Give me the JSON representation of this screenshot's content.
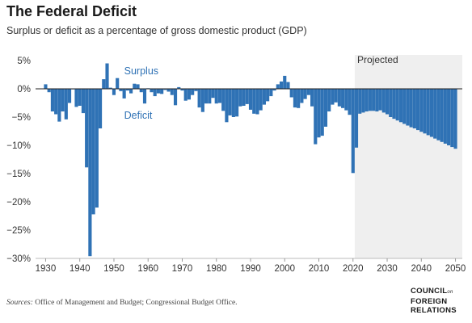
{
  "header": {
    "title": "The Federal Deficit",
    "subtitle": "Surplus or deficit as a percentage of gross domestic product (GDP)"
  },
  "footer": {
    "source_label": "Sources:",
    "source_text": "Office of Management and Budget; Congressional Budget Office.",
    "logo_line1": "COUNCIL",
    "logo_on": "on",
    "logo_line2": "FOREIGN",
    "logo_line3": "RELATIONS"
  },
  "colors": {
    "bar": "#2f72b5",
    "projected_shade": "#efefef",
    "label_text": "#2f72b5",
    "axis_text": "#333333",
    "zero_line": "#222222"
  },
  "chart_data": {
    "type": "bar",
    "title": "The Federal Deficit",
    "subtitle": "Surplus or deficit as a percentage of gross domestic product (GDP)",
    "xlabel": "",
    "ylabel": "",
    "xlim": [
      1928,
      2052
    ],
    "ylim": [
      -30,
      5
    ],
    "x_ticks": [
      1930,
      1940,
      1950,
      1960,
      1970,
      1980,
      1990,
      2000,
      2010,
      2020,
      2030,
      2040,
      2050
    ],
    "y_ticks": [
      5,
      0,
      -5,
      -10,
      -15,
      -20,
      -25,
      -30
    ],
    "y_tick_labels": [
      "5%",
      "0%",
      "−5%",
      "−10%",
      "−15%",
      "−20%",
      "−25%",
      "−30%"
    ],
    "grid": false,
    "annotations": {
      "surplus": "Surplus",
      "deficit": "Deficit",
      "projected": "Projected"
    },
    "projected_from": 2021,
    "x": [
      1930,
      1931,
      1932,
      1933,
      1934,
      1935,
      1936,
      1937,
      1938,
      1939,
      1940,
      1941,
      1942,
      1943,
      1944,
      1945,
      1946,
      1947,
      1948,
      1949,
      1950,
      1951,
      1952,
      1953,
      1954,
      1955,
      1956,
      1957,
      1958,
      1959,
      1960,
      1961,
      1962,
      1963,
      1964,
      1965,
      1966,
      1967,
      1968,
      1969,
      1970,
      1971,
      1972,
      1973,
      1974,
      1975,
      1976,
      1977,
      1978,
      1979,
      1980,
      1981,
      1982,
      1983,
      1984,
      1985,
      1986,
      1987,
      1988,
      1989,
      1990,
      1991,
      1992,
      1993,
      1994,
      1995,
      1996,
      1997,
      1998,
      1999,
      2000,
      2001,
      2002,
      2003,
      2004,
      2005,
      2006,
      2007,
      2008,
      2009,
      2010,
      2011,
      2012,
      2013,
      2014,
      2015,
      2016,
      2017,
      2018,
      2019,
      2020,
      2021,
      2022,
      2023,
      2024,
      2025,
      2026,
      2027,
      2028,
      2029,
      2030,
      2031,
      2032,
      2033,
      2034,
      2035,
      2036,
      2037,
      2038,
      2039,
      2040,
      2041,
      2042,
      2043,
      2044,
      2045,
      2046,
      2047,
      2048,
      2049,
      2050
    ],
    "values": [
      0.8,
      -0.6,
      -4.0,
      -4.5,
      -5.8,
      -4.0,
      -5.4,
      -2.5,
      -0.1,
      -3.2,
      -3.0,
      -4.3,
      -13.9,
      -29.6,
      -22.2,
      -21.0,
      -7.0,
      1.7,
      4.5,
      0.2,
      -1.1,
      1.9,
      -0.4,
      -1.7,
      -0.3,
      -0.8,
      0.9,
      0.8,
      -0.6,
      -2.6,
      0.1,
      -0.6,
      -1.3,
      -0.8,
      -0.9,
      -0.2,
      -0.5,
      -1.1,
      -2.9,
      0.3,
      -0.3,
      -2.1,
      -1.9,
      -1.1,
      -0.4,
      -3.3,
      -4.1,
      -2.6,
      -2.6,
      -1.6,
      -2.6,
      -2.5,
      -3.9,
      -5.9,
      -4.7,
      -5.0,
      -4.9,
      -3.1,
      -3.0,
      -2.7,
      -3.7,
      -4.4,
      -4.5,
      -3.8,
      -2.8,
      -2.2,
      -1.3,
      -0.3,
      0.8,
      1.3,
      2.3,
      1.2,
      -1.5,
      -3.3,
      -3.4,
      -2.5,
      -1.8,
      -1.1,
      -3.1,
      -9.8,
      -8.6,
      -8.3,
      -6.7,
      -4.0,
      -2.8,
      -2.4,
      -3.1,
      -3.4,
      -3.8,
      -4.6,
      -14.9,
      -10.4,
      -4.4,
      -4.2,
      -4.0,
      -3.9,
      -3.9,
      -4.0,
      -3.8,
      -4.2,
      -4.5,
      -5.0,
      -5.3,
      -5.6,
      -5.9,
      -6.2,
      -6.5,
      -6.8,
      -7.0,
      -7.3,
      -7.6,
      -7.9,
      -8.2,
      -8.5,
      -8.8,
      -9.1,
      -9.4,
      -9.7,
      -10.0,
      -10.3,
      -10.6
    ]
  }
}
